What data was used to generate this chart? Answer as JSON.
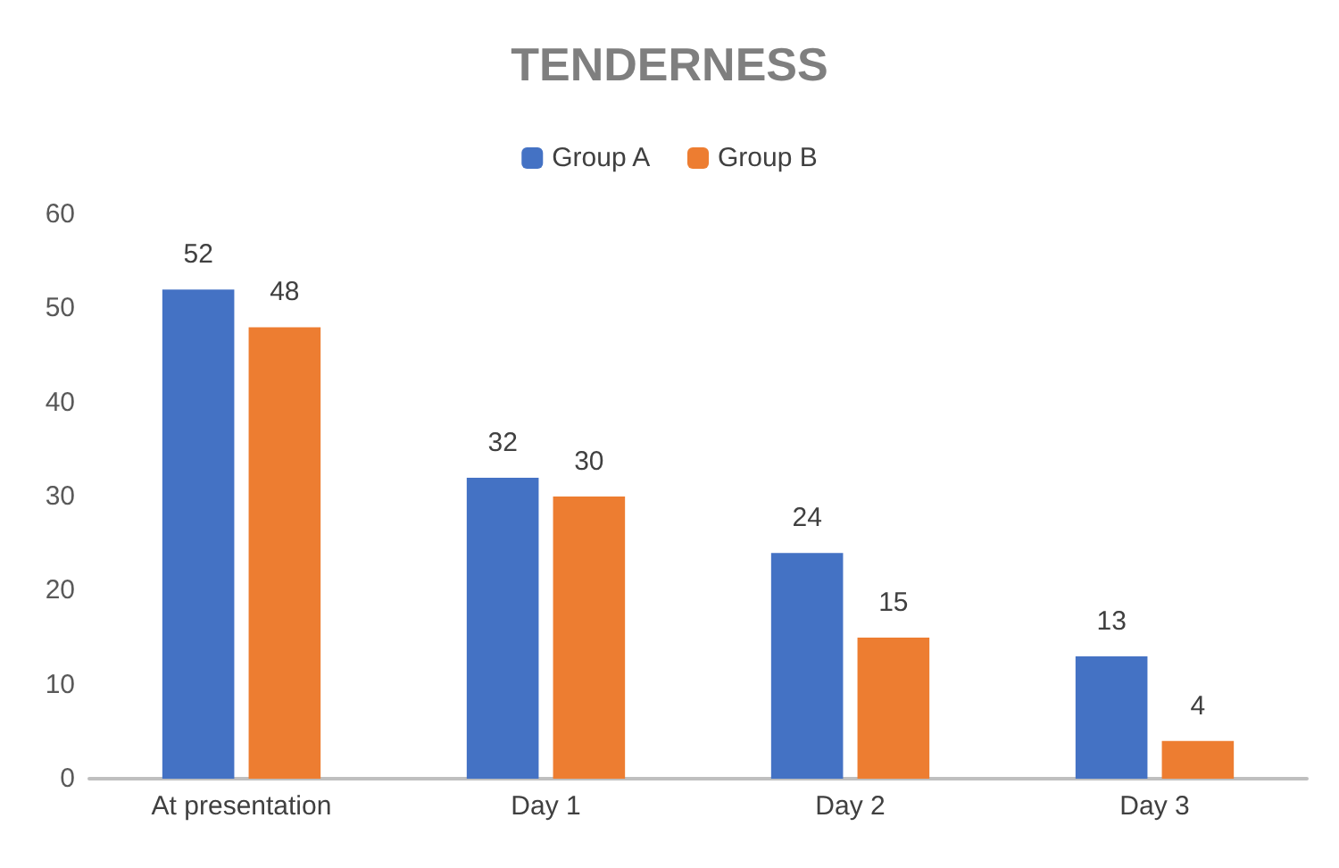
{
  "chart_data": {
    "type": "bar",
    "title": "TENDERNESS",
    "categories": [
      "At presentation",
      "Day 1",
      "Day 2",
      "Day 3"
    ],
    "series": [
      {
        "name": "Group A",
        "color": "#4472c4",
        "values": [
          52,
          32,
          24,
          13
        ]
      },
      {
        "name": "Group B",
        "color": "#ed7d31",
        "values": [
          48,
          30,
          15,
          4
        ]
      }
    ],
    "ylim": [
      0,
      60
    ],
    "yticks": [
      0,
      10,
      20,
      30,
      40,
      50,
      60
    ],
    "grid": false,
    "legend": "top",
    "data_labels": true
  }
}
